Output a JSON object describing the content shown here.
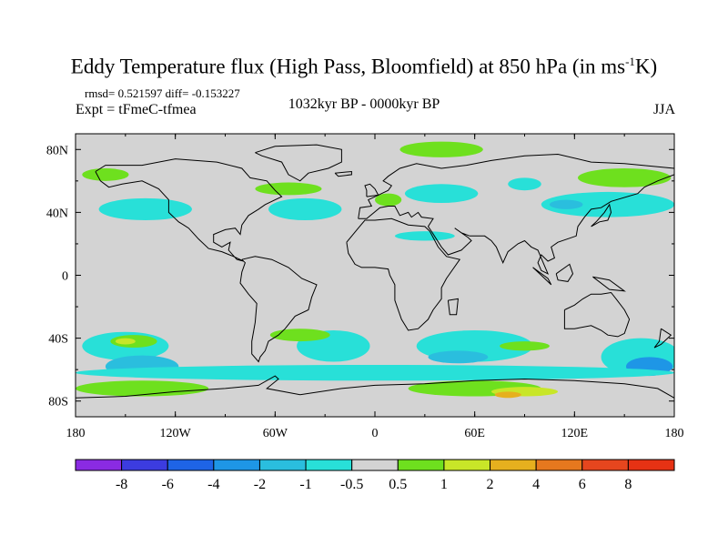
{
  "title": {
    "main": "Eddy Temperature flux (High Pass, Bloomfield) at 850 hPa (in ms",
    "sup": "-1",
    "tail": "K)"
  },
  "stats": "rmsd= 0.521597 diff= -0.153227",
  "experiment": "Expt = tFmeC-tfmea",
  "period": "1032kyr BP - 0000kyr BP",
  "season": "JJA",
  "colors": {
    "background": "#ffffff",
    "neutral_fill": "#d3d3d3",
    "coastline": "#000000",
    "land": "#d3d3d3"
  },
  "map": {
    "projection": "cylindrical-equidistant",
    "lon_range": [
      -180,
      180
    ],
    "lat_range": [
      -90,
      90
    ],
    "lon_ticks": [
      {
        "value": -180,
        "label": "180"
      },
      {
        "value": -120,
        "label": "120W"
      },
      {
        "value": -60,
        "label": "60W"
      },
      {
        "value": 0,
        "label": "0"
      },
      {
        "value": 60,
        "label": "60E"
      },
      {
        "value": 120,
        "label": "120E"
      },
      {
        "value": 180,
        "label": "180"
      }
    ],
    "lat_ticks": [
      {
        "value": 80,
        "label": "80N"
      },
      {
        "value": 40,
        "label": "40N"
      },
      {
        "value": 0,
        "label": "0"
      },
      {
        "value": -40,
        "label": "40S"
      },
      {
        "value": -80,
        "label": "80S"
      }
    ]
  },
  "colorbar": {
    "labels": [
      "-8",
      "-6",
      "-4",
      "-2",
      "-1",
      "-0.5",
      "0.5",
      "1",
      "2",
      "4",
      "6",
      "8"
    ],
    "bins": [
      {
        "color": "#8a2be2"
      },
      {
        "color": "#3c3ce0"
      },
      {
        "color": "#1e64e6"
      },
      {
        "color": "#1e96e6"
      },
      {
        "color": "#2abede"
      },
      {
        "color": "#28e0d8"
      },
      {
        "color": "#d3d3d3"
      },
      {
        "color": "#6ee01e"
      },
      {
        "color": "#c8e628"
      },
      {
        "color": "#e6b01e"
      },
      {
        "color": "#e6781e"
      },
      {
        "color": "#e6461e"
      },
      {
        "color": "#e63214"
      }
    ]
  },
  "anomaly_regions": [
    {
      "id": "n-pacific-blue",
      "cls": "#28e0d8",
      "lon": -138,
      "lat": 42,
      "rx": 28,
      "ry": 7
    },
    {
      "id": "n-atl-blue",
      "cls": "#28e0d8",
      "lon": -42,
      "lat": 42,
      "rx": 22,
      "ry": 7
    },
    {
      "id": "n-asia-blue",
      "cls": "#28e0d8",
      "lon": 40,
      "lat": 52,
      "rx": 22,
      "ry": 6
    },
    {
      "id": "n-asia-blue-2",
      "cls": "#28e0d8",
      "lon": 90,
      "lat": 58,
      "rx": 10,
      "ry": 4
    },
    {
      "id": "n-pac-east-blue",
      "cls": "#28e0d8",
      "lon": 140,
      "lat": 45,
      "rx": 40,
      "ry": 8
    },
    {
      "id": "n-pac-east-blue-2",
      "cls": "#2abede",
      "lon": 115,
      "lat": 45,
      "rx": 10,
      "ry": 3
    },
    {
      "id": "central-asia-blue",
      "cls": "#28e0d8",
      "lon": 30,
      "lat": 25,
      "rx": 18,
      "ry": 3
    },
    {
      "id": "arctic-green",
      "cls": "#6ee01e",
      "lon": 40,
      "lat": 80,
      "rx": 25,
      "ry": 5
    },
    {
      "id": "alaska-green",
      "cls": "#6ee01e",
      "lon": -162,
      "lat": 64,
      "rx": 14,
      "ry": 4
    },
    {
      "id": "n-atl-green",
      "cls": "#6ee01e",
      "lon": -52,
      "lat": 55,
      "rx": 20,
      "ry": 4
    },
    {
      "id": "europe-green",
      "cls": "#6ee01e",
      "lon": 8,
      "lat": 48,
      "rx": 8,
      "ry": 4
    },
    {
      "id": "kamchatka-green",
      "cls": "#6ee01e",
      "lon": 150,
      "lat": 62,
      "rx": 28,
      "ry": 6
    },
    {
      "id": "s-pacific-blue",
      "cls": "#28e0d8",
      "lon": -150,
      "lat": -45,
      "rx": 26,
      "ry": 9
    },
    {
      "id": "s-pacific-blue-2",
      "cls": "#2abede",
      "lon": -140,
      "lat": -58,
      "rx": 22,
      "ry": 7
    },
    {
      "id": "s-pacific-green",
      "cls": "#6ee01e",
      "lon": -145,
      "lat": -42,
      "rx": 14,
      "ry": 4
    },
    {
      "id": "s-pacific-yellow",
      "cls": "#c8e628",
      "lon": -150,
      "lat": -42,
      "rx": 6,
      "ry": 2
    },
    {
      "id": "s-atl-blue",
      "cls": "#28e0d8",
      "lon": -25,
      "lat": -45,
      "rx": 22,
      "ry": 10
    },
    {
      "id": "s-atl-green",
      "cls": "#6ee01e",
      "lon": -45,
      "lat": -38,
      "rx": 18,
      "ry": 4
    },
    {
      "id": "s-indian-blue",
      "cls": "#28e0d8",
      "lon": 60,
      "lat": -45,
      "rx": 35,
      "ry": 10
    },
    {
      "id": "s-indian-blue-2",
      "cls": "#2abede",
      "lon": 50,
      "lat": -52,
      "rx": 18,
      "ry": 4
    },
    {
      "id": "s-indian-green",
      "cls": "#6ee01e",
      "lon": 90,
      "lat": -45,
      "rx": 15,
      "ry": 3
    },
    {
      "id": "s-aus-blue",
      "cls": "#28e0d8",
      "lon": 160,
      "lat": -52,
      "rx": 24,
      "ry": 12
    },
    {
      "id": "s-aus-blue-2",
      "cls": "#1e96e6",
      "lon": 165,
      "lat": -58,
      "rx": 14,
      "ry": 6
    },
    {
      "id": "s-ocean-band",
      "cls": "#28e0d8",
      "lon": 0,
      "lat": -62,
      "rx": 180,
      "ry": 5
    },
    {
      "id": "antarctic-green",
      "cls": "#6ee01e",
      "lon": 60,
      "lat": -72,
      "rx": 40,
      "ry": 5
    },
    {
      "id": "antarctic-green-2",
      "cls": "#6ee01e",
      "lon": -140,
      "lat": -72,
      "rx": 40,
      "ry": 5
    },
    {
      "id": "antarctic-yellow",
      "cls": "#c8e628",
      "lon": 90,
      "lat": -74,
      "rx": 20,
      "ry": 3
    },
    {
      "id": "antarctic-orange",
      "cls": "#e6b01e",
      "lon": 80,
      "lat": -76,
      "rx": 8,
      "ry": 2
    }
  ]
}
